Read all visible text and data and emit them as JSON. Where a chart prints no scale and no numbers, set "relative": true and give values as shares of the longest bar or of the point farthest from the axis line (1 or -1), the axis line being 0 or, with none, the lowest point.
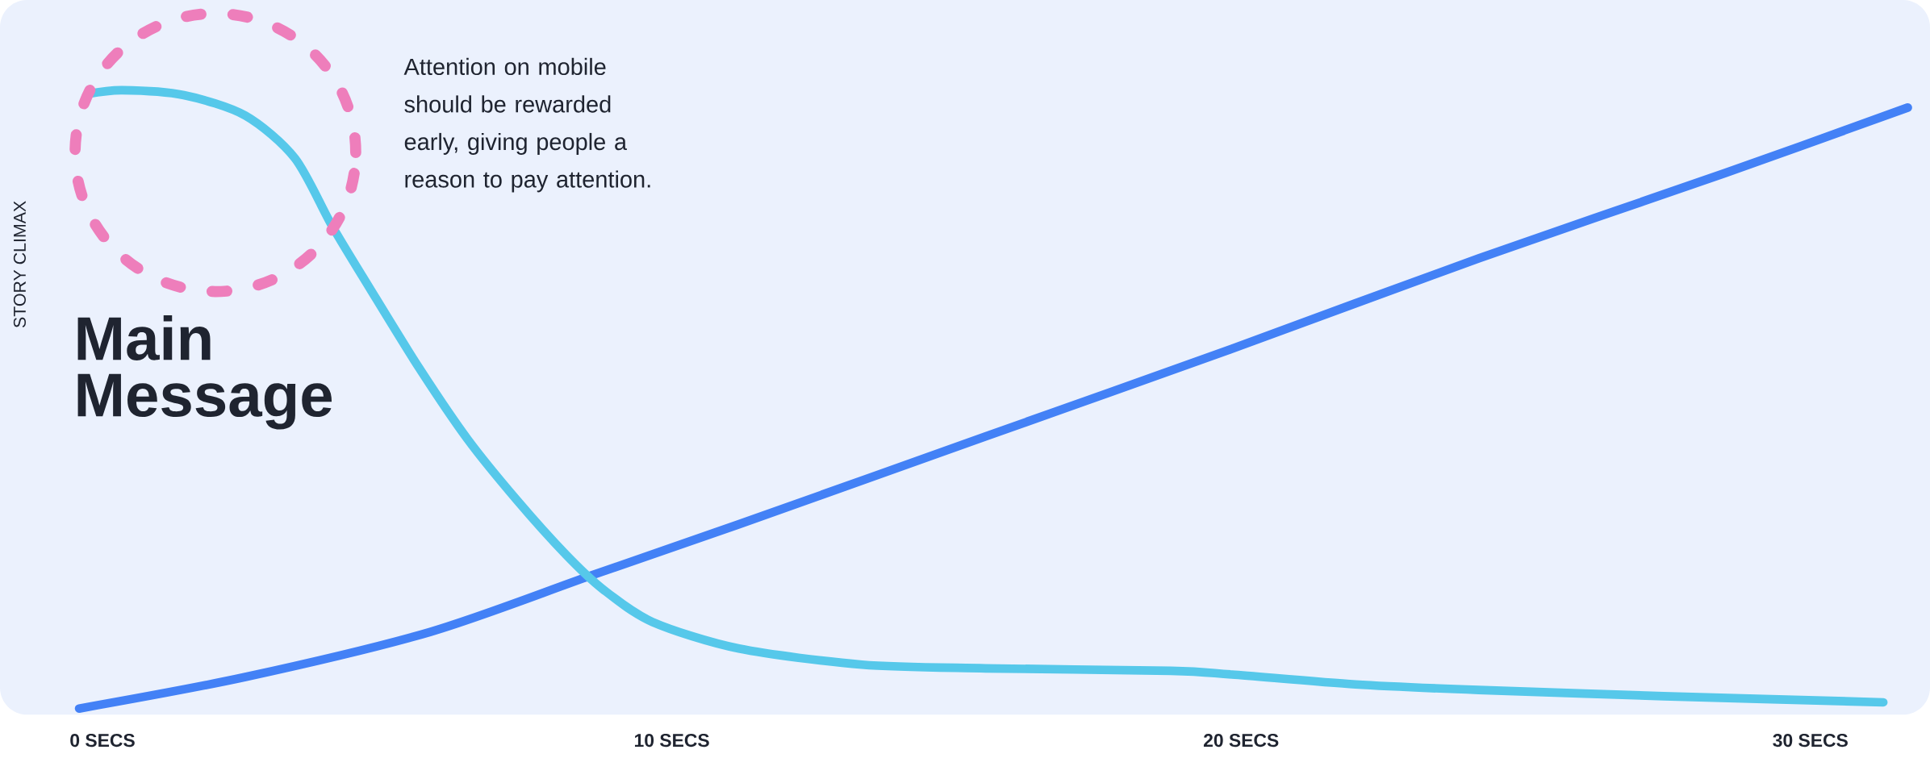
{
  "chart_data": {
    "type": "line",
    "relative": true,
    "ylabel": "STORY CLIMAX",
    "xlim": [
      -1.8,
      32.1
    ],
    "xticks": [
      {
        "value": 0,
        "label": "0 SECS"
      },
      {
        "value": 10,
        "label": "10 SECS"
      },
      {
        "value": 20,
        "label": "20 SECS"
      },
      {
        "value": 30,
        "label": "30 SECS"
      }
    ],
    "line_style": "solid",
    "series": [
      {
        "color": "#4381f6",
        "x": [
          -0.41,
          2.51,
          5.76,
          8.58,
          11.18,
          15.51,
          19.84,
          24.17,
          28.5,
          31.71
        ],
        "values": [
          0,
          0.051,
          0.124,
          0.215,
          0.298,
          0.44,
          0.582,
          0.728,
          0.866,
          0.972
        ]
      },
      {
        "color": "#56c8ea",
        "x": [
          -0.26,
          0.35,
          1.43,
          2.51,
          3.38,
          4.03,
          4.68,
          5.54,
          6.41,
          7.28,
          8.14,
          8.79,
          9.66,
          11.18,
          13.34,
          15.51,
          18.76,
          19.84,
          22.01,
          24.17,
          27.42,
          31.28
        ],
        "values": [
          0.994,
          1.0,
          0.992,
          0.959,
          0.89,
          0.781,
          0.682,
          0.554,
          0.436,
          0.337,
          0.249,
          0.193,
          0.14,
          0.097,
          0.071,
          0.065,
          0.061,
          0.055,
          0.039,
          0.03,
          0.02,
          0.01
        ]
      }
    ],
    "annotations": [
      "Main Message",
      "Attention on mobile should be rewarded early, giving people a reason to pay attention."
    ]
  }
}
